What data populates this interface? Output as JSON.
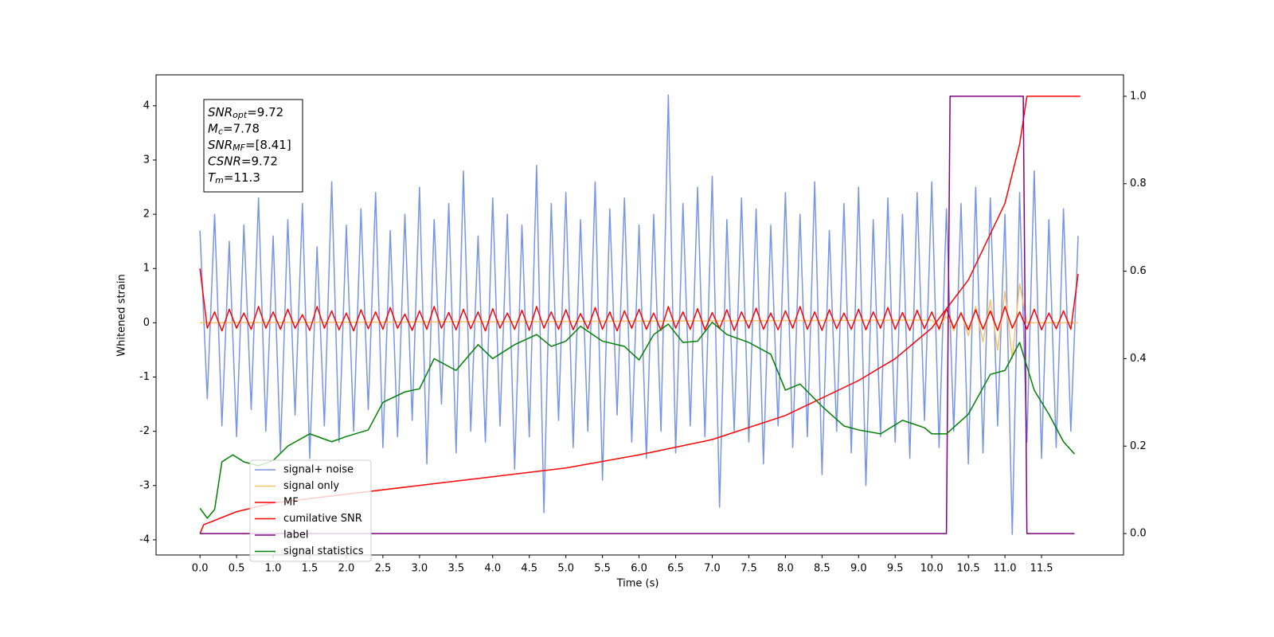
{
  "chart_data": {
    "type": "line",
    "xlabel": "Time (s)",
    "ylabel": "Whitened strain",
    "xlim": [
      -0.6,
      12.62
    ],
    "ylim": [
      -4.28,
      4.57
    ],
    "y2lim": [
      -0.049,
      1.049
    ],
    "xticks": [
      {
        "value": 0,
        "label": "0.0"
      },
      0.5,
      {
        "value": 1,
        "label": "1.0"
      },
      1.5,
      {
        "value": 2,
        "label": "2.0"
      },
      2.5,
      {
        "value": 3,
        "label": "3.0"
      },
      3.5,
      {
        "value": 4,
        "label": "4.0"
      },
      4.5,
      {
        "value": 5,
        "label": "5.0"
      },
      5.5,
      {
        "value": 6,
        "label": "6.0"
      },
      6.5,
      {
        "value": 7,
        "label": "7.0"
      },
      7.5,
      {
        "value": 8,
        "label": "8.0"
      },
      8.5,
      {
        "value": 9,
        "label": "9.0"
      },
      9.5,
      {
        "value": 10,
        "label": "10.0"
      },
      10.5,
      {
        "value": 11,
        "label": "11.0"
      },
      11.5
    ],
    "yticks": [
      -4,
      -3,
      -2,
      -1,
      0,
      1,
      2,
      3,
      4
    ],
    "y2ticks": [
      {
        "value": 0,
        "label": "0.0"
      },
      0.2,
      0.4,
      0.6,
      0.8,
      {
        "value": 1,
        "label": "1.0"
      }
    ],
    "grid": false,
    "legend_loc": "lower left",
    "annotation": [
      {
        "name": "SNR",
        "sub": "opt",
        "rest": "=9.72"
      },
      {
        "name": "M",
        "sub": "c",
        "rest": "=7.78"
      },
      {
        "name": "SNR",
        "sub": "MF",
        "rest": "=[8.41]"
      },
      {
        "name": "CSNR",
        "sub": "",
        "rest": "=9.72"
      },
      {
        "name": "T",
        "sub": "m",
        "rest": "=11.3"
      }
    ],
    "series": [
      {
        "name": "signal+ noise",
        "color": "#7794e8",
        "x": [
          0,
          0.1,
          0.2,
          0.3,
          0.4,
          0.5,
          0.6,
          0.7,
          0.8,
          0.9,
          1,
          1.1,
          1.2,
          1.3,
          1.4,
          1.5,
          1.6,
          1.7,
          1.8,
          1.9,
          2,
          2.1,
          2.2,
          2.3,
          2.4,
          2.5,
          2.6,
          2.7,
          2.8,
          2.9,
          3,
          3.1,
          3.2,
          3.3,
          3.4,
          3.5,
          3.6,
          3.7,
          3.8,
          3.9,
          4,
          4.1,
          4.2,
          4.3,
          4.4,
          4.5,
          4.6,
          4.7,
          4.8,
          4.9,
          5,
          5.1,
          5.2,
          5.3,
          5.4,
          5.5,
          5.6,
          5.7,
          5.8,
          5.9,
          6,
          6.1,
          6.2,
          6.3,
          6.4,
          6.5,
          6.6,
          6.7,
          6.8,
          6.9,
          7,
          7.1,
          7.2,
          7.3,
          7.4,
          7.5,
          7.6,
          7.7,
          7.8,
          7.9,
          8,
          8.1,
          8.2,
          8.3,
          8.4,
          8.5,
          8.6,
          8.7,
          8.8,
          8.9,
          9,
          9.1,
          9.2,
          9.3,
          9.4,
          9.5,
          9.6,
          9.7,
          9.8,
          9.9,
          10,
          10.1,
          10.2,
          10.3,
          10.4,
          10.5,
          10.6,
          10.7,
          10.8,
          10.9,
          11,
          11.1,
          11.2,
          11.3,
          11.4,
          11.5,
          11.6,
          11.7,
          11.8,
          11.9,
          12
        ],
        "values": [
          1.7,
          -1.4,
          2.0,
          -1.9,
          1.5,
          -2.1,
          1.8,
          -1.6,
          2.3,
          -2.0,
          1.6,
          -2.4,
          1.9,
          -1.7,
          2.2,
          -2.5,
          1.4,
          -1.9,
          2.6,
          -2.2,
          1.8,
          -2.0,
          2.1,
          -1.6,
          2.4,
          -2.3,
          1.7,
          -2.1,
          2.0,
          -1.8,
          2.5,
          -2.6,
          1.9,
          -1.5,
          2.2,
          -2.4,
          2.8,
          -2.0,
          1.6,
          -2.2,
          2.3,
          -1.9,
          2.0,
          -2.7,
          1.8,
          -2.1,
          2.9,
          -3.5,
          2.2,
          -1.8,
          2.4,
          -2.3,
          1.9,
          -2.0,
          2.6,
          -2.9,
          2.1,
          -1.7,
          2.3,
          -2.2,
          1.8,
          -2.5,
          2.0,
          -2.0,
          4.2,
          -2.4,
          2.2,
          -1.9,
          2.5,
          -2.1,
          2.7,
          -3.4,
          1.9,
          -2.0,
          2.3,
          -2.2,
          2.1,
          -2.6,
          1.8,
          -1.9,
          2.4,
          -2.3,
          2.0,
          -2.1,
          2.6,
          -2.8,
          1.7,
          -2.0,
          2.2,
          -2.4,
          2.5,
          -3.0,
          1.9,
          -2.1,
          2.3,
          -2.2,
          2.0,
          -2.5,
          2.4,
          -1.8,
          2.6,
          -2.3,
          2.1,
          -2.0,
          2.2,
          -2.6,
          2.5,
          -2.4,
          2.3,
          -1.9,
          2.0,
          -3.9,
          2.4,
          -2.2,
          2.8,
          -2.5,
          1.9,
          -2.3,
          2.1,
          -2.0,
          1.6
        ]
      },
      {
        "name": "signal only",
        "color": "#f5c26b",
        "x": [
          0,
          10,
          10.1,
          10.2,
          10.3,
          10.4,
          10.5,
          10.6,
          10.7,
          10.8,
          10.9,
          11,
          11.1,
          11.2,
          11.3,
          12
        ],
        "values": [
          0,
          0.05,
          -0.08,
          0.12,
          -0.15,
          0.2,
          -0.24,
          0.3,
          -0.35,
          0.42,
          -0.5,
          0.58,
          -0.66,
          0.72,
          0,
          0
        ]
      },
      {
        "name": "MF",
        "color": "#ff0000",
        "x": [
          0,
          0.1,
          0.2,
          0.3,
          0.4,
          0.5,
          0.6,
          0.7,
          0.8,
          0.9,
          1,
          1.1,
          1.2,
          1.3,
          1.4,
          1.5,
          1.6,
          1.7,
          1.8,
          1.9,
          2,
          2.1,
          2.2,
          2.3,
          2.4,
          2.5,
          2.6,
          2.7,
          2.8,
          2.9,
          3,
          3.1,
          3.2,
          3.3,
          3.4,
          3.5,
          3.6,
          3.7,
          3.8,
          3.9,
          4,
          4.1,
          4.2,
          4.3,
          4.4,
          4.5,
          4.6,
          4.7,
          4.8,
          4.9,
          5,
          5.1,
          5.2,
          5.3,
          5.4,
          5.5,
          5.6,
          5.7,
          5.8,
          5.9,
          6,
          6.1,
          6.2,
          6.3,
          6.4,
          6.5,
          6.6,
          6.7,
          6.8,
          6.9,
          7,
          7.1,
          7.2,
          7.3,
          7.4,
          7.5,
          7.6,
          7.7,
          7.8,
          7.9,
          8,
          8.1,
          8.2,
          8.3,
          8.4,
          8.5,
          8.6,
          8.7,
          8.8,
          8.9,
          9,
          9.1,
          9.2,
          9.3,
          9.4,
          9.5,
          9.6,
          9.7,
          9.8,
          9.9,
          10,
          10.1,
          10.2,
          10.3,
          10.4,
          10.5,
          10.6,
          10.7,
          10.8,
          10.9,
          11,
          11.1,
          11.2,
          11.3,
          11.4,
          11.5,
          11.6,
          11.7,
          11.8,
          11.9,
          12
        ],
        "values": [
          1.0,
          -0.1,
          0.2,
          -0.15,
          0.25,
          -0.1,
          0.18,
          -0.12,
          0.3,
          -0.1,
          0.2,
          -0.12,
          0.25,
          -0.1,
          0.15,
          -0.14,
          0.3,
          -0.1,
          0.22,
          -0.13,
          0.18,
          -0.15,
          0.24,
          -0.11,
          0.2,
          -0.12,
          0.28,
          -0.1,
          0.16,
          -0.14,
          0.22,
          -0.12,
          0.3,
          -0.1,
          0.19,
          -0.13,
          0.25,
          -0.11,
          0.2,
          -0.15,
          0.26,
          -0.1,
          0.18,
          -0.12,
          0.23,
          -0.14,
          0.3,
          -0.1,
          0.2,
          -0.12,
          0.24,
          -0.13,
          0.17,
          -0.11,
          0.28,
          -0.12,
          0.2,
          -0.15,
          0.22,
          -0.1,
          0.25,
          -0.12,
          0.18,
          -0.14,
          0.3,
          -0.1,
          0.2,
          -0.12,
          0.26,
          -0.13,
          0.19,
          -0.11,
          0.24,
          -0.14,
          0.2,
          -0.1,
          0.27,
          -0.12,
          0.18,
          -0.13,
          0.22,
          -0.1,
          0.3,
          -0.12,
          0.2,
          -0.14,
          0.24,
          -0.11,
          0.18,
          -0.12,
          0.25,
          -0.13,
          0.2,
          -0.1,
          0.28,
          -0.12,
          0.19,
          -0.14,
          0.23,
          -0.11,
          0.2,
          -0.12,
          0.26,
          -0.1,
          0.18,
          -0.13,
          0.24,
          -0.12,
          0.22,
          -0.14,
          0.3,
          -0.1,
          0.2,
          -0.12,
          0.25,
          -0.13,
          0.18,
          -0.11,
          0.22,
          -0.12,
          0.9
        ]
      },
      {
        "name": "cumilative SNR",
        "color": "#ff0000",
        "axis": "y2",
        "x": [
          0,
          0.05,
          0.5,
          1,
          2,
          3,
          4,
          5,
          6,
          7,
          8,
          9,
          9.5,
          10,
          10.5,
          11,
          11.2,
          11.3,
          12.03
        ],
        "values": [
          0,
          0.02,
          0.05,
          0.07,
          0.09,
          0.11,
          0.13,
          0.15,
          0.18,
          0.215,
          0.27,
          0.35,
          0.4,
          0.47,
          0.58,
          0.755,
          0.89,
          1.0,
          1.0
        ]
      },
      {
        "name": "label",
        "color": "#800080",
        "axis": "y2",
        "x": [
          0,
          10.2,
          10.25,
          11.25,
          11.3,
          11.95
        ],
        "values": [
          0,
          0,
          1,
          1,
          0,
          0
        ]
      },
      {
        "name": "signal statistics",
        "color": "#008000",
        "axis": "y2",
        "x": [
          0,
          0.1,
          0.2,
          0.3,
          0.45,
          0.6,
          0.8,
          1.0,
          1.2,
          1.5,
          1.8,
          2.0,
          2.3,
          2.5,
          2.8,
          3.0,
          3.2,
          3.5,
          3.8,
          4.0,
          4.3,
          4.6,
          4.8,
          5.0,
          5.2,
          5.5,
          5.8,
          6.0,
          6.2,
          6.4,
          6.6,
          6.8,
          7.0,
          7.2,
          7.5,
          7.8,
          8.0,
          8.2,
          8.5,
          8.8,
          9.0,
          9.3,
          9.6,
          9.9,
          10.0,
          10.2,
          10.5,
          10.8,
          11.0,
          11.2,
          11.4,
          11.6,
          11.8,
          11.95
        ],
        "values": [
          0.058,
          0.035,
          0.055,
          0.164,
          0.18,
          0.164,
          0.155,
          0.167,
          0.2,
          0.228,
          0.21,
          0.222,
          0.237,
          0.3,
          0.324,
          0.331,
          0.4,
          0.373,
          0.432,
          0.4,
          0.432,
          0.455,
          0.428,
          0.44,
          0.474,
          0.44,
          0.428,
          0.397,
          0.455,
          0.479,
          0.437,
          0.44,
          0.483,
          0.455,
          0.437,
          0.41,
          0.328,
          0.342,
          0.291,
          0.246,
          0.237,
          0.228,
          0.259,
          0.242,
          0.228,
          0.228,
          0.273,
          0.364,
          0.373,
          0.437,
          0.328,
          0.273,
          0.21,
          0.182
        ]
      }
    ]
  }
}
